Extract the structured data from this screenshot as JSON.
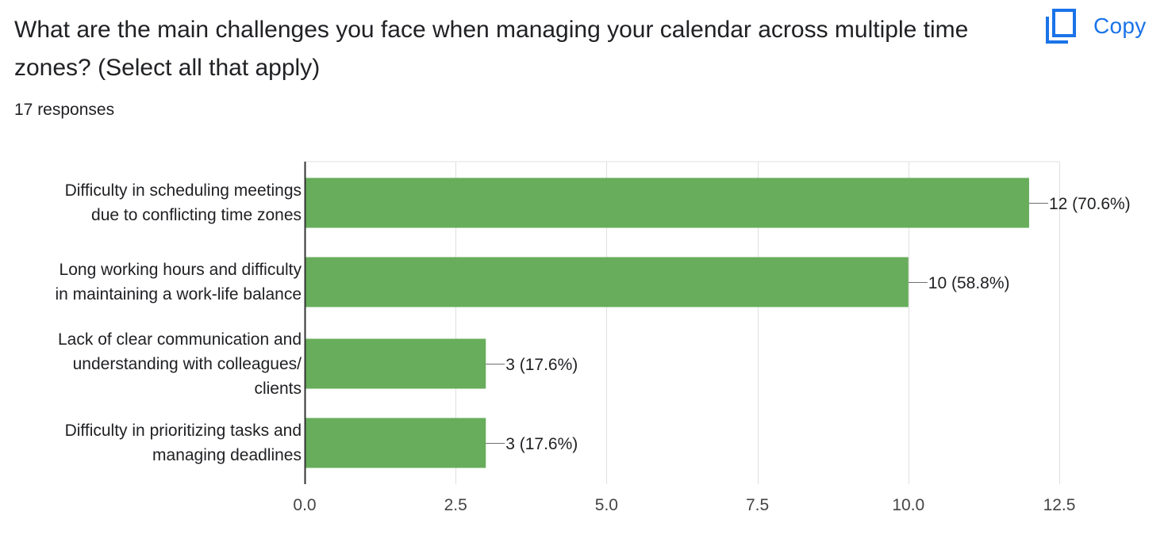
{
  "header": {
    "title": "What are the main challenges you face when managing your calendar across multiple time zones? (Select all that apply)",
    "responses": "17 responses",
    "copy_label": "Copy",
    "copy_icon": "copy-icon",
    "accent_color": "#1a73e8"
  },
  "chart_data": {
    "type": "bar",
    "orientation": "horizontal",
    "categories": [
      "Difficulty in scheduling meetings due to conflicting time zones",
      "Long working hours and difficulty in maintaining a work-life balance",
      "Lack of clear communication and understanding with colleagues/ clients",
      "Difficulty in prioritizing tasks and managing deadlines"
    ],
    "category_label_lines": [
      [
        "Difficulty in scheduling meetings",
        "due to conflicting time zones"
      ],
      [
        "Long working hours and difficulty",
        "in maintaining a work-life balance"
      ],
      [
        "Lack of clear communication and",
        "understanding with colleagues/",
        "clients"
      ],
      [
        "Difficulty in prioritizing tasks and",
        "managing deadlines"
      ]
    ],
    "values": [
      12,
      10,
      3,
      3
    ],
    "data_labels": [
      "12 (70.6%)",
      "10 (58.8%)",
      "3 (17.6%)",
      "3 (17.6%)"
    ],
    "xlim": [
      0,
      12.5
    ],
    "xticks": [
      "0.0",
      "2.5",
      "5.0",
      "7.5",
      "10.0",
      "12.5"
    ],
    "xtick_values": [
      0,
      2.5,
      5,
      7.5,
      10,
      12.5
    ],
    "bar_color": "#67ad5b",
    "grid": true
  }
}
